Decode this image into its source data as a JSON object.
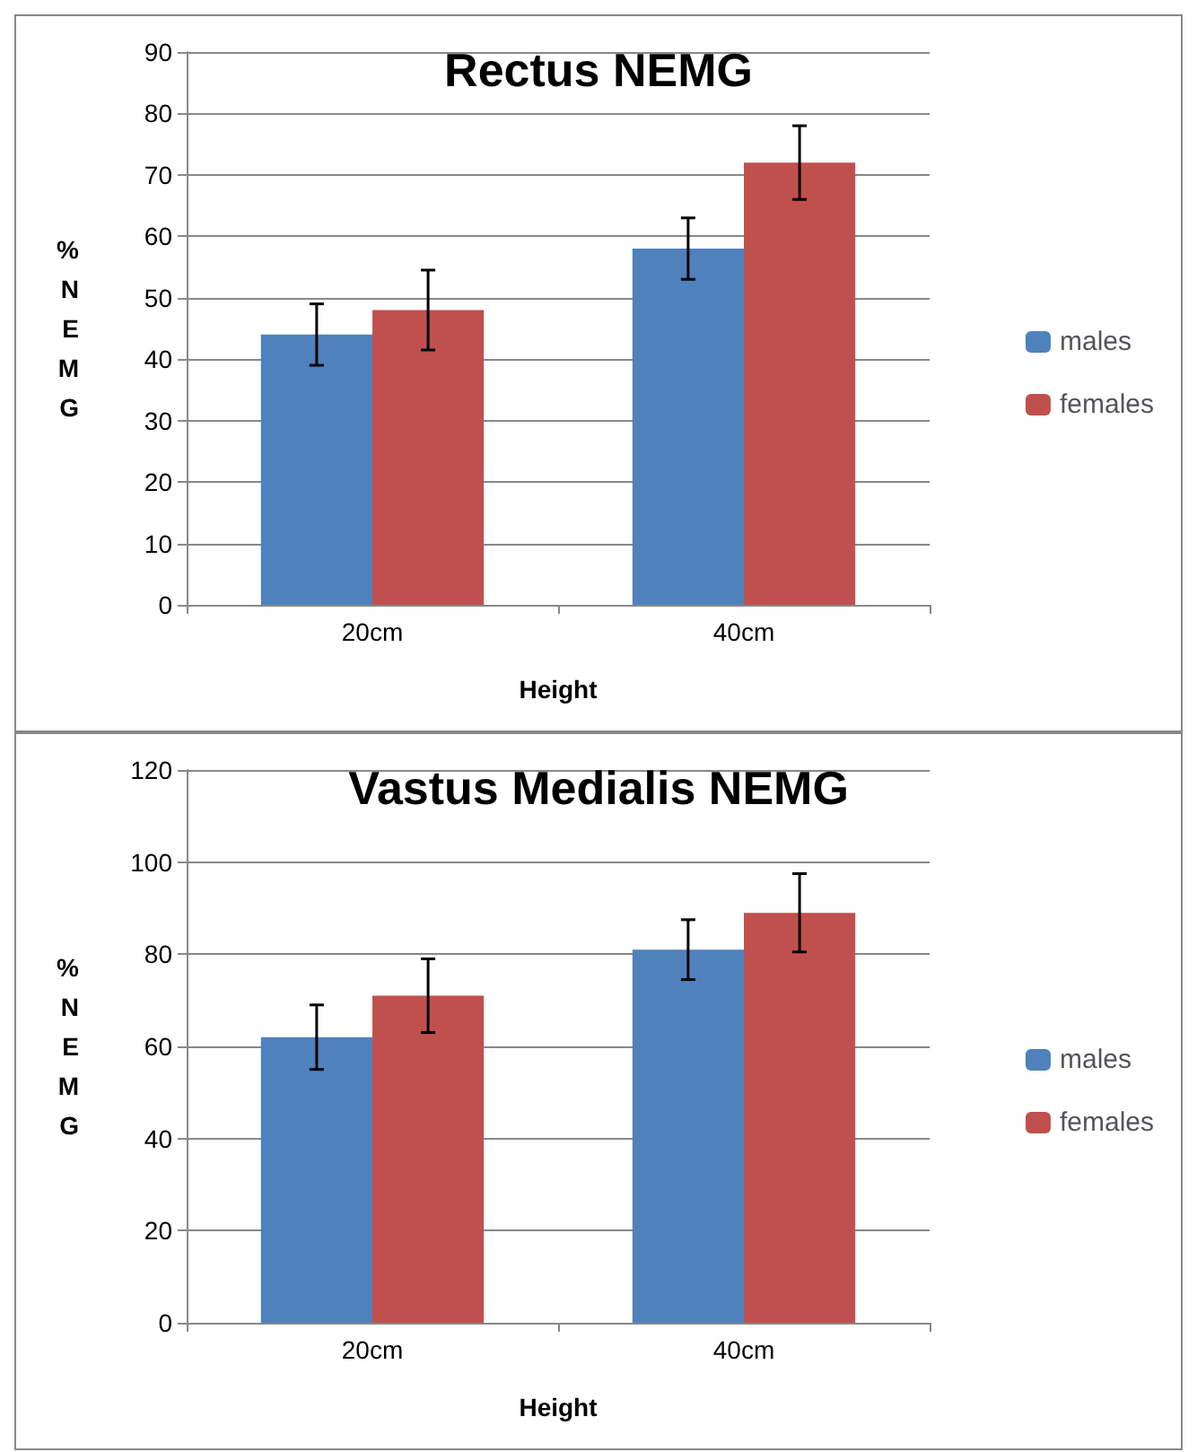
{
  "chart_data": [
    {
      "type": "bar",
      "title": "Rectus NEMG",
      "xlabel": "Height",
      "ylabel": "%NEMG",
      "categories": [
        "20cm",
        "40cm"
      ],
      "series": [
        {
          "name": "males",
          "color": "#4f81bd",
          "values": [
            44,
            58
          ],
          "errors": [
            5,
            5
          ]
        },
        {
          "name": "females",
          "color": "#c0504d",
          "values": [
            48,
            72
          ],
          "errors": [
            6.5,
            6
          ]
        }
      ],
      "ylim": [
        0,
        90
      ],
      "yticks": [
        0,
        10,
        20,
        30,
        40,
        50,
        60,
        70,
        80,
        90
      ],
      "grid": "y",
      "legend": "right"
    },
    {
      "type": "bar",
      "title": "Vastus Medialis NEMG",
      "xlabel": "Height",
      "ylabel": "%NEMG",
      "categories": [
        "20cm",
        "40cm"
      ],
      "series": [
        {
          "name": "males",
          "color": "#4f81bd",
          "values": [
            62,
            81
          ],
          "errors": [
            7,
            6.5
          ]
        },
        {
          "name": "females",
          "color": "#c0504d",
          "values": [
            71,
            89
          ],
          "errors": [
            8,
            8.5
          ]
        }
      ],
      "ylim": [
        0,
        120
      ],
      "yticks": [
        0,
        20,
        40,
        60,
        80,
        100,
        120
      ],
      "grid": "y",
      "legend": "right"
    }
  ]
}
